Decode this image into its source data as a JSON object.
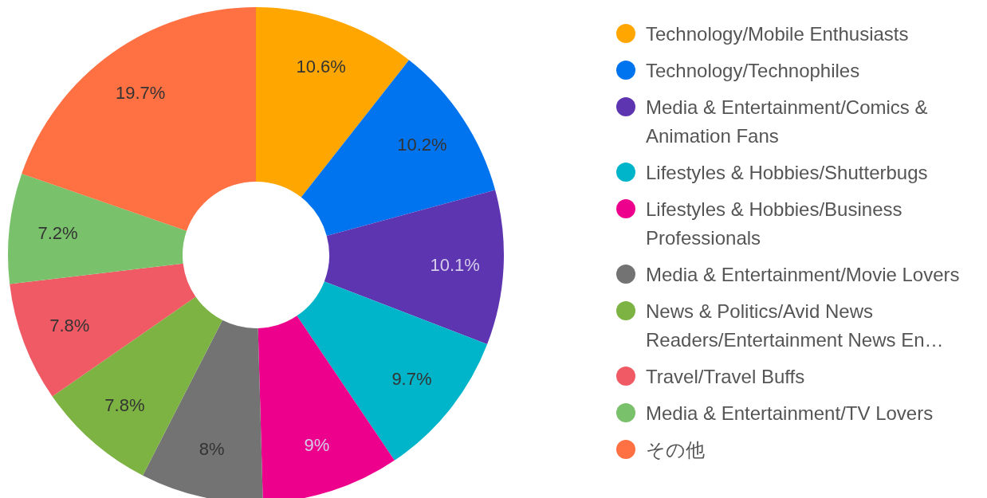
{
  "chart_data": {
    "type": "donut",
    "categories": [
      "Technology/Mobile Enthusiasts",
      "Technology/Technophiles",
      "Media & Entertainment/Comics & Animation Fans",
      "Lifestyles & Hobbies/Shutterbugs",
      "Lifestyles & Hobbies/Business Professionals",
      "Media & Entertainment/Movie Lovers",
      "News & Politics/Avid News Readers/Entertainment News En…",
      "Travel/Travel Buffs",
      "Media & Entertainment/TV Lovers",
      "その他"
    ],
    "values": [
      10.6,
      10.2,
      10.1,
      9.7,
      9,
      8,
      7.8,
      7.8,
      7.2,
      19.7
    ],
    "value_labels": [
      "10.6%",
      "10.2%",
      "10.1%",
      "9.7%",
      "9%",
      "8%",
      "7.8%",
      "7.8%",
      "7.2%",
      "19.7%"
    ],
    "colors": [
      "#ffa600",
      "#0073ee",
      "#5e35b1",
      "#00b4c9",
      "#ec008c",
      "#737373",
      "#7cb342",
      "#ef5a64",
      "#79c16a",
      "#ff7043"
    ],
    "legend": "right"
  }
}
